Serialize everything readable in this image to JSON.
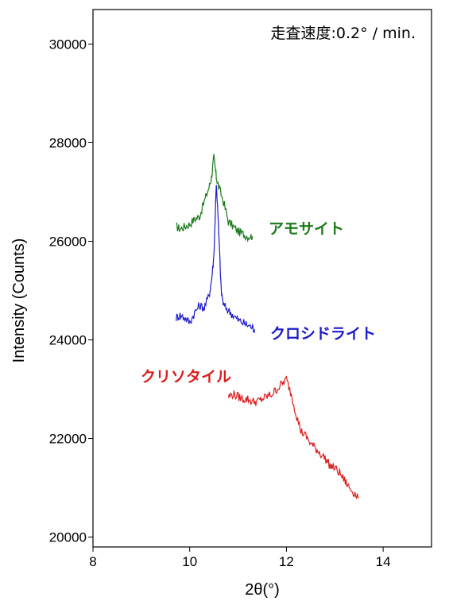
{
  "chart_data": {
    "type": "line",
    "xlabel": "2θ(°)",
    "ylabel": "Intensity (Counts)",
    "xlim": [
      8,
      15
    ],
    "ylim": [
      19800,
      30700
    ],
    "x_ticks": [
      "8",
      "10",
      "12",
      "14"
    ],
    "y_ticks": [
      "20000",
      "22000",
      "24000",
      "26000",
      "28000",
      "30000"
    ],
    "annotation": "走査速度:0.2°  /  min.",
    "series": [
      {
        "name": "アモサイト",
        "color": "#1a7a1a",
        "x": [
          9.72,
          9.8,
          9.9,
          10.0,
          10.1,
          10.2,
          10.3,
          10.4,
          10.45,
          10.5,
          10.55,
          10.6,
          10.7,
          10.8,
          10.9,
          11.0,
          11.1,
          11.2,
          11.3
        ],
        "y": [
          26300,
          26250,
          26300,
          26350,
          26450,
          26500,
          26800,
          27100,
          27300,
          27700,
          27300,
          27100,
          26800,
          26400,
          26300,
          26200,
          26150,
          26100,
          26100
        ]
      },
      {
        "name": "クロシドライト",
        "color": "#1a1acc",
        "x": [
          9.72,
          9.8,
          9.9,
          10.0,
          10.1,
          10.2,
          10.3,
          10.4,
          10.45,
          10.5,
          10.55,
          10.6,
          10.65,
          10.7,
          10.8,
          10.9,
          11.0,
          11.1,
          11.2,
          11.3,
          11.35
        ],
        "y": [
          24450,
          24500,
          24450,
          24350,
          24550,
          24700,
          24650,
          24900,
          25200,
          25700,
          27200,
          26200,
          25000,
          24700,
          24600,
          24500,
          24400,
          24350,
          24300,
          24250,
          24200
        ]
      },
      {
        "name": "クリソタイル",
        "color": "#d91e1e",
        "x": [
          10.8,
          10.9,
          11.0,
          11.1,
          11.2,
          11.3,
          11.4,
          11.5,
          11.6,
          11.7,
          11.8,
          11.9,
          12.0,
          12.1,
          12.2,
          12.3,
          12.4,
          12.5,
          12.6,
          12.7,
          12.8,
          12.9,
          13.0,
          13.1,
          13.2,
          13.3,
          13.4,
          13.5
        ],
        "y": [
          22850,
          22900,
          22850,
          22800,
          22800,
          22750,
          22750,
          22800,
          22850,
          22900,
          23000,
          23100,
          23200,
          22900,
          22500,
          22150,
          22050,
          21900,
          21800,
          21700,
          21600,
          21450,
          21400,
          21300,
          21150,
          21000,
          20900,
          20800
        ]
      }
    ]
  }
}
